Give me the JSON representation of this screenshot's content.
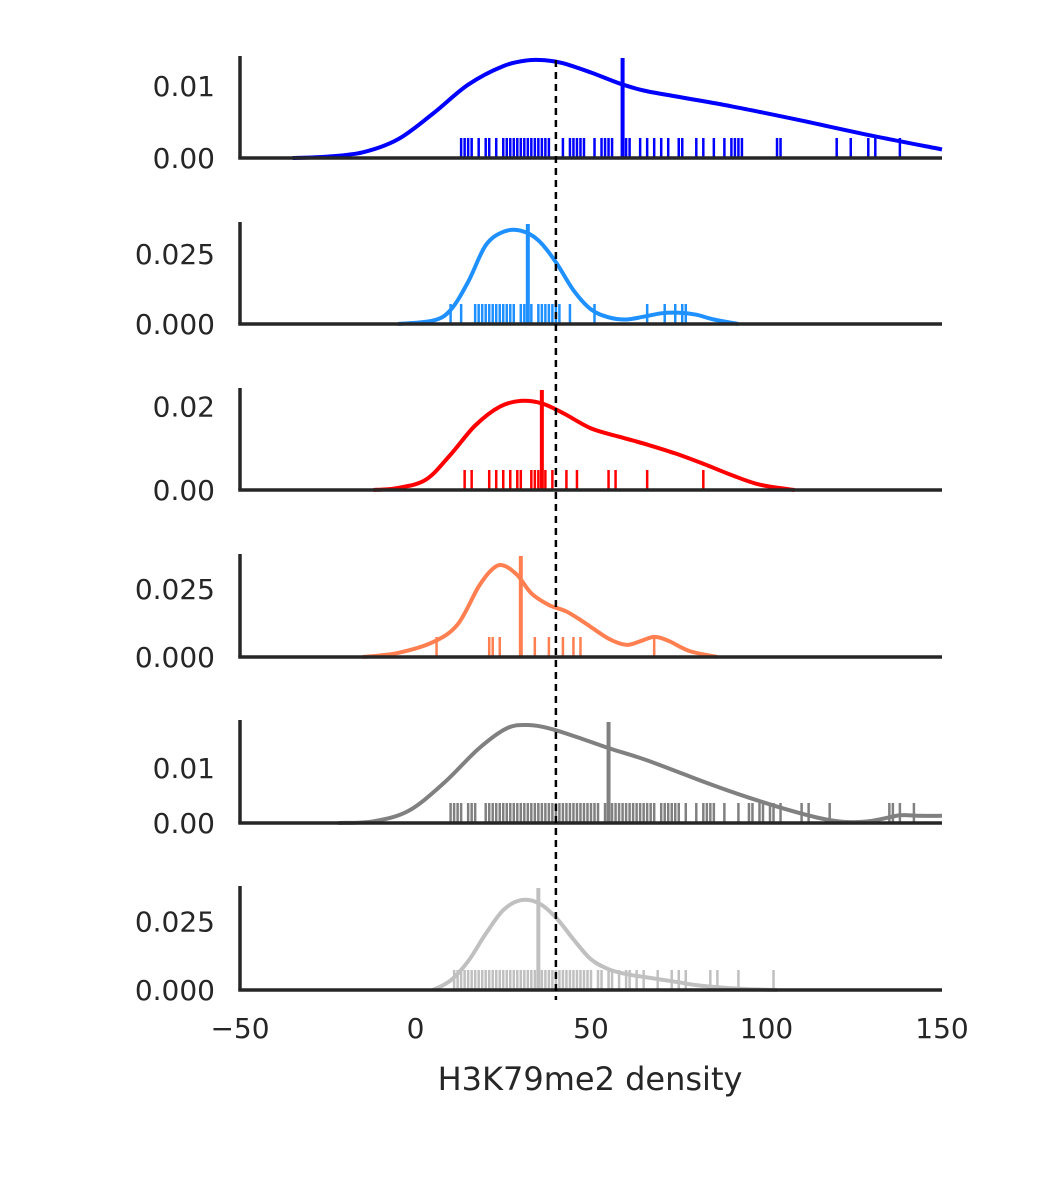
{
  "chart_data": {
    "type": "density_rug",
    "title": "",
    "xlabel": "H3K79me2 density",
    "xlim": [
      -50,
      150
    ],
    "x_ticks": [
      -50,
      0,
      50,
      100,
      150
    ],
    "x_tick_labels": [
      "−50",
      "0",
      "50",
      "100",
      "150"
    ],
    "reference_line": {
      "x": 40,
      "style": "dashed",
      "color": "#000000"
    },
    "grid": false,
    "legend": "none",
    "panels": [
      {
        "color": "#0000ff",
        "ylim": [
          0,
          0.0142
        ],
        "y_ticks": [
          0,
          0.01
        ],
        "y_tick_labels": [
          "0.00",
          "0.01"
        ],
        "median": 59,
        "kde": [
          [
            -35,
            0
          ],
          [
            -25,
            0.0002
          ],
          [
            -15,
            0.0008
          ],
          [
            -5,
            0.0026
          ],
          [
            5,
            0.0062
          ],
          [
            15,
            0.0102
          ],
          [
            25,
            0.0128
          ],
          [
            32,
            0.0136
          ],
          [
            37,
            0.0136
          ],
          [
            42,
            0.0132
          ],
          [
            50,
            0.0119
          ],
          [
            58,
            0.0104
          ],
          [
            65,
            0.0094
          ],
          [
            75,
            0.0085
          ],
          [
            90,
            0.0072
          ],
          [
            110,
            0.0052
          ],
          [
            130,
            0.0031
          ],
          [
            150,
            0.0012
          ]
        ],
        "rug": [
          13,
          14,
          15,
          16,
          18,
          20,
          21,
          23,
          25,
          26,
          27,
          28,
          29,
          30,
          31,
          32,
          33,
          34,
          35,
          36,
          37,
          38,
          42,
          44,
          45,
          46,
          47,
          48,
          51,
          53,
          54,
          55,
          56,
          60,
          61,
          64,
          66,
          68,
          70,
          72,
          75,
          76,
          80,
          82,
          85,
          88,
          90,
          91,
          92,
          93,
          103,
          104,
          120,
          124,
          129,
          131,
          138
        ]
      },
      {
        "color": "#1e90ff",
        "ylim": [
          0,
          0.0363
        ],
        "y_ticks": [
          0,
          0.025
        ],
        "y_tick_labels": [
          "0.000",
          "0.025"
        ],
        "median": 32,
        "kde": [
          [
            -5,
            0
          ],
          [
            5,
            0.0012
          ],
          [
            10,
            0.005
          ],
          [
            15,
            0.015
          ],
          [
            20,
            0.028
          ],
          [
            25,
            0.0328
          ],
          [
            30,
            0.0332
          ],
          [
            35,
            0.0298
          ],
          [
            40,
            0.022
          ],
          [
            45,
            0.012
          ],
          [
            50,
            0.0052
          ],
          [
            55,
            0.0024
          ],
          [
            60,
            0.0016
          ],
          [
            65,
            0.0026
          ],
          [
            70,
            0.0038
          ],
          [
            75,
            0.004
          ],
          [
            80,
            0.0033
          ],
          [
            85,
            0.0016
          ],
          [
            92,
            0
          ]
        ],
        "rug": [
          10,
          13,
          17,
          18,
          19,
          20,
          21,
          22,
          23,
          24,
          25,
          26,
          27,
          28,
          30,
          31,
          32,
          33,
          35,
          36,
          37,
          38,
          39,
          40,
          41,
          44,
          51,
          66,
          71,
          74,
          76,
          77
        ]
      },
      {
        "color": "#ff0000",
        "ylim": [
          0,
          0.0245
        ],
        "y_ticks": [
          0,
          0.02
        ],
        "y_tick_labels": [
          "0.00",
          "0.02"
        ],
        "median": 36,
        "kde": [
          [
            -12,
            0
          ],
          [
            -5,
            0.0005
          ],
          [
            3,
            0.0025
          ],
          [
            10,
            0.0085
          ],
          [
            17,
            0.0155
          ],
          [
            24,
            0.02
          ],
          [
            30,
            0.0214
          ],
          [
            36,
            0.0208
          ],
          [
            42,
            0.0185
          ],
          [
            50,
            0.0148
          ],
          [
            58,
            0.0128
          ],
          [
            66,
            0.0109
          ],
          [
            74,
            0.0088
          ],
          [
            82,
            0.0063
          ],
          [
            90,
            0.0036
          ],
          [
            98,
            0.0013
          ],
          [
            108,
            0
          ]
        ],
        "rug": [
          14,
          16,
          21,
          23,
          25,
          27,
          29,
          30,
          33,
          34,
          35,
          36,
          37,
          39,
          43,
          46,
          55,
          57,
          66,
          82
        ]
      },
      {
        "color": "#ff7f50",
        "ylim": [
          0,
          0.038
        ],
        "y_ticks": [
          0,
          0.025
        ],
        "y_tick_labels": [
          "0.000",
          "0.025"
        ],
        "median": 30,
        "kde": [
          [
            -15,
            0
          ],
          [
            -5,
            0.0015
          ],
          [
            5,
            0.0055
          ],
          [
            12,
            0.012
          ],
          [
            18,
            0.026
          ],
          [
            22,
            0.0325
          ],
          [
            25,
            0.0338
          ],
          [
            29,
            0.0302
          ],
          [
            33,
            0.0235
          ],
          [
            38,
            0.0192
          ],
          [
            43,
            0.0168
          ],
          [
            48,
            0.0128
          ],
          [
            55,
            0.0068
          ],
          [
            60,
            0.0045
          ],
          [
            64,
            0.0058
          ],
          [
            68,
            0.0074
          ],
          [
            72,
            0.006
          ],
          [
            78,
            0.0022
          ],
          [
            86,
            0
          ]
        ],
        "rug": [
          6,
          21,
          22,
          24,
          30,
          34,
          38,
          42,
          45,
          47,
          68
        ]
      },
      {
        "color": "#808080",
        "ylim": [
          0,
          0.0187
        ],
        "y_ticks": [
          0,
          0.01
        ],
        "y_tick_labels": [
          "0.00",
          "0.01"
        ],
        "median": 55,
        "kde": [
          [
            -22,
            0
          ],
          [
            -12,
            0.0003
          ],
          [
            -2,
            0.0022
          ],
          [
            8,
            0.0072
          ],
          [
            18,
            0.0135
          ],
          [
            26,
            0.0172
          ],
          [
            32,
            0.0178
          ],
          [
            38,
            0.0172
          ],
          [
            46,
            0.0156
          ],
          [
            55,
            0.0136
          ],
          [
            65,
            0.0116
          ],
          [
            75,
            0.0092
          ],
          [
            85,
            0.0068
          ],
          [
            95,
            0.0046
          ],
          [
            105,
            0.0026
          ],
          [
            115,
            0.0009
          ],
          [
            122,
            0.0002
          ],
          [
            130,
            0.0004
          ],
          [
            138,
            0.0014
          ],
          [
            143,
            0.0013
          ],
          [
            150,
            0.0013
          ]
        ],
        "rug": [
          10,
          11,
          12,
          13,
          15,
          16,
          17,
          20,
          21,
          22,
          23,
          24,
          25,
          26,
          27,
          28,
          29,
          30,
          31,
          32,
          33,
          34,
          35,
          36,
          37,
          38,
          39,
          40,
          41,
          42,
          43,
          44,
          45,
          46,
          47,
          48,
          49,
          50,
          51,
          52,
          54,
          55,
          56,
          57,
          58,
          59,
          60,
          61,
          62,
          63,
          64,
          65,
          66,
          67,
          68,
          70,
          71,
          72,
          73,
          74,
          75,
          77,
          80,
          82,
          83,
          84,
          85,
          88,
          92,
          95,
          96,
          98,
          99,
          101,
          102,
          104,
          110,
          112,
          118,
          135,
          136,
          138,
          142
        ]
      },
      {
        "color": "#c0c0c0",
        "ylim": [
          0,
          0.038
        ],
        "y_ticks": [
          0,
          0.025
        ],
        "y_tick_labels": [
          "0.000",
          "0.025"
        ],
        "median": 35,
        "kde": [
          [
            5,
            0
          ],
          [
            10,
            0.0035
          ],
          [
            15,
            0.0105
          ],
          [
            20,
            0.0205
          ],
          [
            25,
            0.0292
          ],
          [
            30,
            0.0328
          ],
          [
            35,
            0.0318
          ],
          [
            40,
            0.0265
          ],
          [
            45,
            0.0185
          ],
          [
            50,
            0.0112
          ],
          [
            55,
            0.0076
          ],
          [
            60,
            0.0058
          ],
          [
            65,
            0.0048
          ],
          [
            70,
            0.0038
          ],
          [
            75,
            0.0028
          ],
          [
            80,
            0.0018
          ],
          [
            88,
            0.0008
          ],
          [
            95,
            0.0003
          ],
          [
            103,
            0
          ]
        ],
        "rug": [
          11,
          12,
          13,
          14,
          15,
          16,
          17,
          18,
          19,
          20,
          21,
          22,
          23,
          24,
          25,
          26,
          27,
          28,
          29,
          30,
          31,
          32,
          33,
          34,
          35,
          36,
          37,
          38,
          39,
          40,
          41,
          42,
          43,
          44,
          45,
          46,
          47,
          48,
          49,
          50,
          52,
          53,
          55,
          56,
          58,
          60,
          61,
          63,
          65,
          69,
          73,
          75,
          77,
          84,
          86,
          92,
          102
        ]
      }
    ]
  }
}
